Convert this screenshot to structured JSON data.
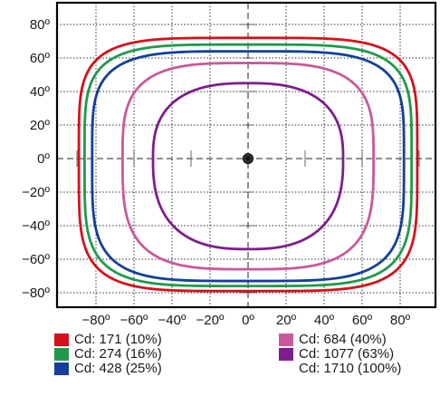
{
  "chart_data": {
    "type": "polar-isocandela",
    "xlim": [
      -90,
      90
    ],
    "ylim": [
      -90,
      90
    ],
    "x_ticks": [
      "−80º",
      "−60º",
      "−40º",
      "−20º",
      "0º",
      "20º",
      "40º",
      "60º",
      "80º"
    ],
    "x_tick_values": [
      -80,
      -60,
      -40,
      -20,
      0,
      20,
      40,
      60,
      80
    ],
    "y_ticks": [
      "80º",
      "60º",
      "40º",
      "20º",
      "0º",
      "−20º",
      "−40º",
      "−60º",
      "−80º"
    ],
    "y_tick_values": [
      80,
      60,
      40,
      20,
      0,
      -20,
      -40,
      -60,
      -80
    ],
    "grid": true,
    "center_marker": [
      0,
      0
    ],
    "series": [
      {
        "name": "Cd: 171 (10%)",
        "color": "#d4121a",
        "half_width_deg": 89,
        "top_deg": 72,
        "bottom_deg": -79,
        "shape": 4.6
      },
      {
        "name": "Cd: 274 (16%)",
        "color": "#1f9a4b",
        "half_width_deg": 86,
        "top_deg": 68,
        "bottom_deg": -76,
        "shape": 4.4
      },
      {
        "name": "Cd: 428 (25%)",
        "color": "#143f97",
        "half_width_deg": 82,
        "top_deg": 64,
        "bottom_deg": -73,
        "shape": 4.2
      },
      {
        "name": "Cd: 684 (40%)",
        "color": "#c85a9a",
        "half_width_deg": 66,
        "top_deg": 57,
        "bottom_deg": -66,
        "shape": 3.4
      },
      {
        "name": "Cd: 1077 (63%)",
        "color": "#7e1e8c",
        "half_width_deg": 50,
        "top_deg": 45,
        "bottom_deg": -54,
        "shape": 2.6
      }
    ],
    "legend": [
      {
        "label": "Cd: 171 (10%)",
        "color": "#d4121a"
      },
      {
        "label": "Cd: 274 (16%)",
        "color": "#1f9a4b"
      },
      {
        "label": "Cd: 428 (25%)",
        "color": "#143f97"
      },
      {
        "label": "Cd: 684 (40%)",
        "color": "#c85a9a"
      },
      {
        "label": "Cd: 1077 (63%)",
        "color": "#7e1e8c"
      },
      {
        "label": "Cd: 1710 (100%)",
        "color": ""
      }
    ]
  }
}
